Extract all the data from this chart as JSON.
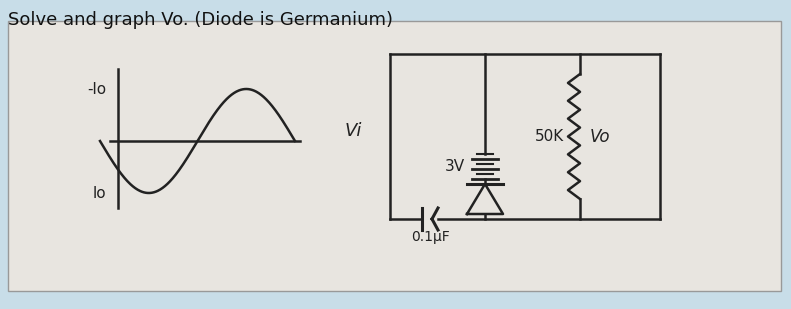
{
  "title": "Solve and graph Vo. (Diode is Germanium)",
  "bg_outer": "#c8dde8",
  "bg_inner": "#e8e5e0",
  "title_fontsize": 13,
  "title_color": "#111111",
  "sine_label_str_pos": "lo",
  "sine_label_str_neg": "-lo",
  "cap_label": "0.1μF",
  "vi_label": "Vi",
  "battery_label": "3V",
  "resistor_label": "50K",
  "vo_label": "Vo"
}
